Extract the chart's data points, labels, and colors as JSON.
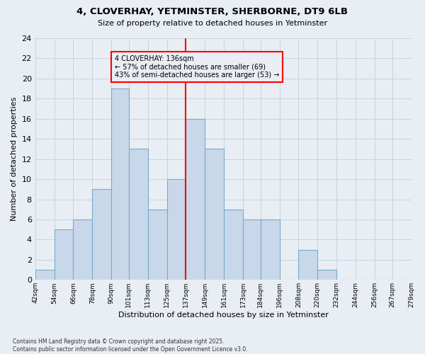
{
  "title1": "4, CLOVERHAY, YETMINSTER, SHERBORNE, DT9 6LB",
  "title2": "Size of property relative to detached houses in Yetminster",
  "xlabel": "Distribution of detached houses by size in Yetminster",
  "ylabel": "Number of detached properties",
  "footnote": "Contains HM Land Registry data © Crown copyright and database right 2025.\nContains public sector information licensed under the Open Government Licence v3.0.",
  "bin_labels": [
    "42sqm",
    "54sqm",
    "66sqm",
    "78sqm",
    "90sqm",
    "101sqm",
    "113sqm",
    "125sqm",
    "137sqm",
    "149sqm",
    "161sqm",
    "173sqm",
    "184sqm",
    "196sqm",
    "208sqm",
    "220sqm",
    "232sqm",
    "244sqm",
    "256sqm",
    "267sqm",
    "279sqm"
  ],
  "bin_edges": [
    42,
    54,
    66,
    78,
    90,
    101,
    113,
    125,
    137,
    149,
    161,
    173,
    184,
    196,
    208,
    220,
    232,
    244,
    256,
    267,
    279
  ],
  "bar_heights": [
    1,
    5,
    6,
    9,
    19,
    13,
    7,
    10,
    16,
    13,
    7,
    6,
    6,
    0,
    3,
    1,
    0,
    0,
    0,
    0,
    0
  ],
  "bar_color": "#c8d8ea",
  "bar_edge_color": "#7aaac8",
  "grid_color": "#c8d4de",
  "vline_x": 137,
  "vline_color": "red",
  "annotation_text": "4 CLOVERHAY: 136sqm\n← 57% of detached houses are smaller (69)\n43% of semi-detached houses are larger (53) →",
  "annotation_box_color": "red",
  "ylim": [
    0,
    24
  ],
  "yticks": [
    0,
    2,
    4,
    6,
    8,
    10,
    12,
    14,
    16,
    18,
    20,
    22,
    24
  ],
  "bg_color": "#e8eef4"
}
